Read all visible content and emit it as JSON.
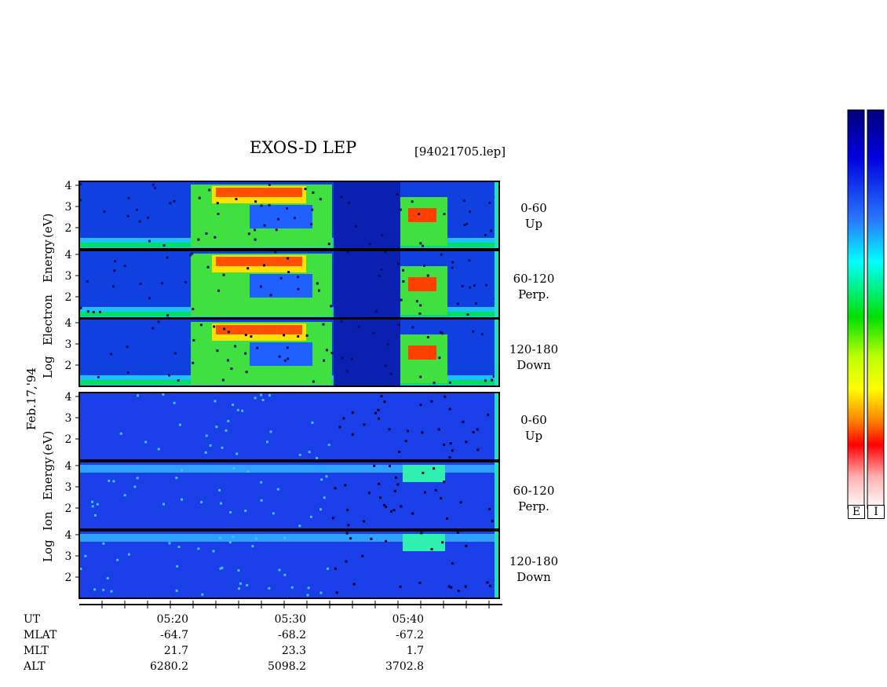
{
  "chart_data": {
    "type": "heatmap",
    "title": "EXOS-D LEP",
    "file": "[94021705.lep]",
    "date_label": "Feb.17,'94",
    "electron_axis_label": [
      "Log",
      "Electron",
      "Energy",
      "(eV)"
    ],
    "ion_axis_label": [
      "Log",
      "Ion",
      "Energy",
      "(eV)"
    ],
    "panels": [
      {
        "species": "Electron",
        "pitch": "0-60",
        "dir": "Up"
      },
      {
        "species": "Electron",
        "pitch": "60-120",
        "dir": "Perp."
      },
      {
        "species": "Electron",
        "pitch": "120-180",
        "dir": "Down"
      },
      {
        "species": "Ion",
        "pitch": "0-60",
        "dir": "Up"
      },
      {
        "species": "Ion",
        "pitch": "60-120",
        "dir": "Perp."
      },
      {
        "species": "Ion",
        "pitch": "120-180",
        "dir": "Down"
      }
    ],
    "y_ticks": [
      "4",
      "3",
      "2"
    ],
    "x_ticks": [
      "05:20",
      "05:30",
      "05:40"
    ],
    "footer_rows": [
      {
        "name": "UT",
        "values": [
          "05:20",
          "05:30",
          "05:40"
        ]
      },
      {
        "name": "MLAT",
        "values": [
          "-64.7",
          "-68.2",
          "-67.2"
        ]
      },
      {
        "name": "MLT",
        "values": [
          "21.7",
          "23.3",
          "1.7"
        ]
      },
      {
        "name": "ALT",
        "values": [
          "6280.2",
          "5098.2",
          "3702.8"
        ]
      }
    ],
    "colorbar_labels": [
      "E",
      "I"
    ]
  }
}
